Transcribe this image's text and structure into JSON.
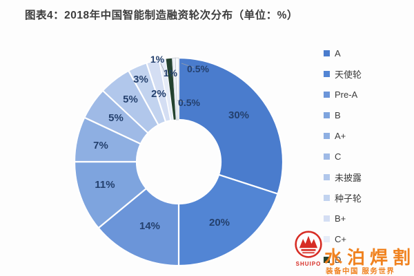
{
  "title": "图表4：2018年中国智能制造融资轮次分布（单位：%）",
  "colors": {
    "label_text": "#24406d",
    "title_text": "#3d3d3d",
    "legend_text": "#3a3a3a",
    "divider": "#ffffff",
    "watermark_orange": "#f07d17",
    "watermark_red": "#d6251d"
  },
  "chart_data": {
    "type": "pie",
    "subtype": "donut",
    "title": "图表4：2018年中国智能制造融资轮次分布（单位：%）",
    "unit": "%",
    "legend_position": "right",
    "total": 100,
    "slices": [
      {
        "name": "A",
        "value": 30,
        "label": "30%",
        "color": "#4a7ccd"
      },
      {
        "name": "天使轮",
        "value": 20,
        "label": "20%",
        "color": "#5285d4"
      },
      {
        "name": "Pre-A",
        "value": 14,
        "label": "14%",
        "color": "#6b95d9"
      },
      {
        "name": "B",
        "value": 11,
        "label": "11%",
        "color": "#7ea4de"
      },
      {
        "name": "A+",
        "value": 7,
        "label": "7%",
        "color": "#8eafe2"
      },
      {
        "name": "C",
        "value": 5,
        "label": "5%",
        "color": "#9fbae6"
      },
      {
        "name": "未披露",
        "value": 5,
        "label": "5%",
        "color": "#b1c7eb"
      },
      {
        "name": "种子轮",
        "value": 3,
        "label": "3%",
        "color": "#c2d3ef"
      },
      {
        "name": "B+",
        "value": 2,
        "label": "2%",
        "color": "#d4def3"
      },
      {
        "name": "C+",
        "value": 1,
        "label": "1%",
        "color": "#e6ecf8"
      },
      {
        "name": "D",
        "value": 1,
        "label": "1%",
        "color": "#24422f"
      },
      {
        "name": "",
        "value": 0.5,
        "label": "0.5%",
        "color": "#eff2f7"
      },
      {
        "name": "",
        "value": 0.5,
        "label": "0.5%",
        "color": "#f9fbfd"
      }
    ]
  },
  "watermark": {
    "logo_text": "SHUIPO",
    "brand_text": "水泊焊割",
    "tagline": "装备中国 服务世界"
  }
}
